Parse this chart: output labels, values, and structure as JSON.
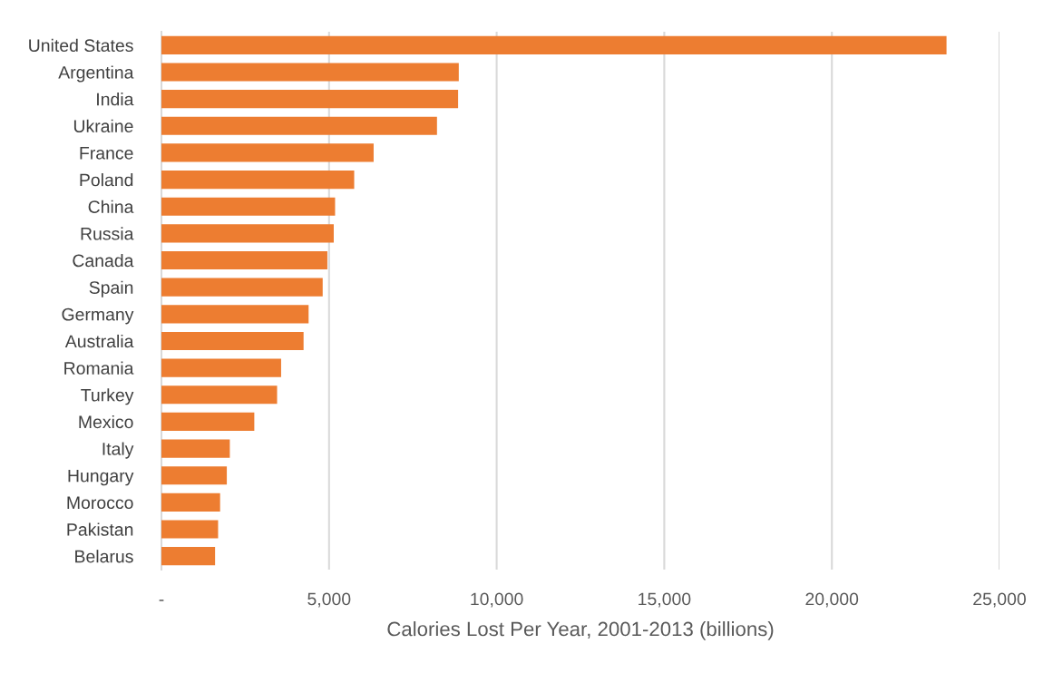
{
  "chart_data": {
    "type": "bar",
    "orientation": "horizontal",
    "categories": [
      "United States",
      "Argentina",
      "India",
      "Ukraine",
      "France",
      "Poland",
      "China",
      "Russia",
      "Canada",
      "Spain",
      "Germany",
      "Australia",
      "Romania",
      "Turkey",
      "Mexico",
      "Italy",
      "Hungary",
      "Morocco",
      "Pakistan",
      "Belarus"
    ],
    "values": [
      23420,
      8870,
      8850,
      8220,
      6330,
      5750,
      5180,
      5140,
      4950,
      4810,
      4390,
      4240,
      3570,
      3450,
      2770,
      2040,
      1950,
      1750,
      1690,
      1600
    ],
    "color": "#ed7d31",
    "xlabel": "Calories Lost Per Year, 2001-2013 (billions)",
    "xlim": [
      0,
      25000
    ],
    "xticks": [
      {
        "value": 0,
        "label": "-"
      },
      {
        "value": 5000,
        "label": "5,000"
      },
      {
        "value": 10000,
        "label": "10,000"
      },
      {
        "value": 15000,
        "label": "15,000"
      },
      {
        "value": 20000,
        "label": "20,000"
      },
      {
        "value": 25000,
        "label": "25,000"
      }
    ],
    "grid": "x"
  }
}
